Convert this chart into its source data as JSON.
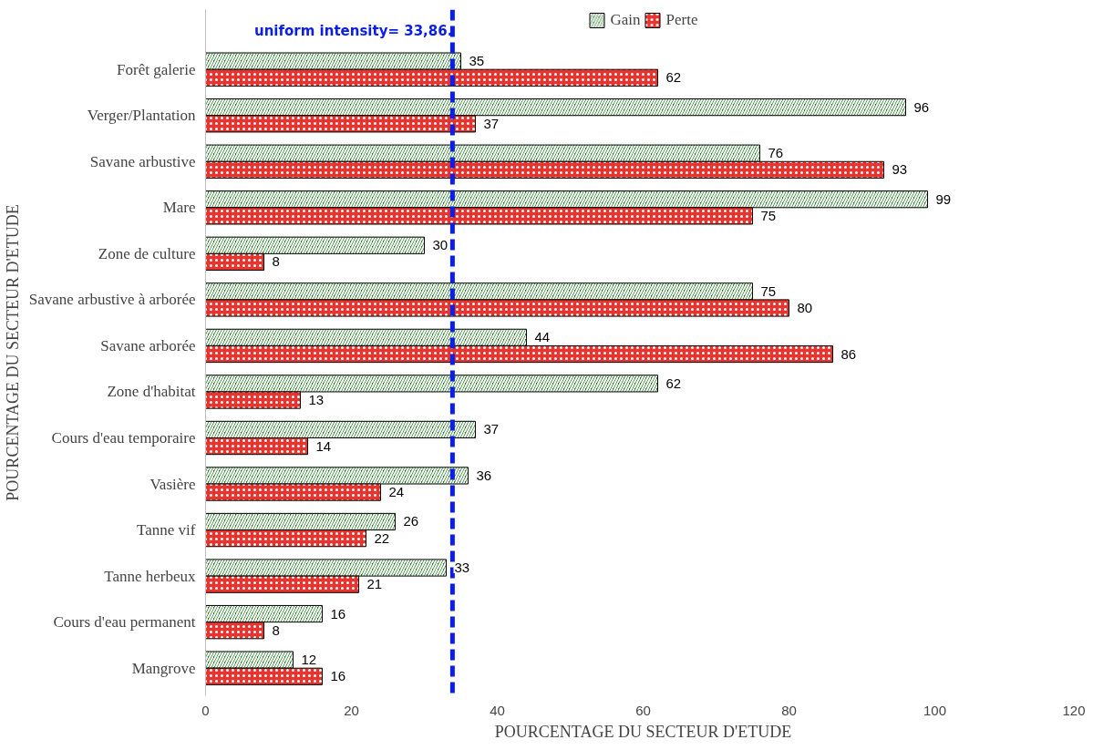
{
  "chart_data": {
    "type": "bar",
    "orientation": "horizontal",
    "xlabel": "POURCENTAGE DU SECTEUR D'ETUDE",
    "ylabel": "POURCENTAGE DU SECTEUR D'ETUDE",
    "categories": [
      "Forêt galerie",
      "Verger/Plantation",
      "Savane arbustive",
      "Mare",
      "Zone de culture",
      "Savane arbustive à arborée",
      "Savane arborée",
      "Zone d'habitat",
      "Cours d'eau temporaire",
      "Vasière",
      "Tanne vif",
      "Tanne herbeux",
      "Cours d'eau permanent",
      "Mangrove"
    ],
    "series": [
      {
        "name": "Gain",
        "color": "#1f7a1f",
        "values": [
          35,
          96,
          76,
          99,
          30,
          75,
          44,
          62,
          37,
          36,
          26,
          33,
          16,
          12
        ]
      },
      {
        "name": "Perte",
        "color": "#e8342f",
        "values": [
          62,
          37,
          93,
          75,
          8,
          80,
          86,
          13,
          14,
          24,
          22,
          21,
          8,
          16
        ]
      }
    ],
    "xlim": [
      0,
      120
    ],
    "xticks": [
      0,
      20,
      40,
      60,
      80,
      100,
      120
    ],
    "ref_lines": [
      {
        "axis": "x",
        "value": 33.86,
        "label": "uniform intensity= 33,86.",
        "color": "#0a1ee6",
        "line_style": "dashed"
      }
    ],
    "data_labels": true,
    "grid": false,
    "legend": "top"
  }
}
